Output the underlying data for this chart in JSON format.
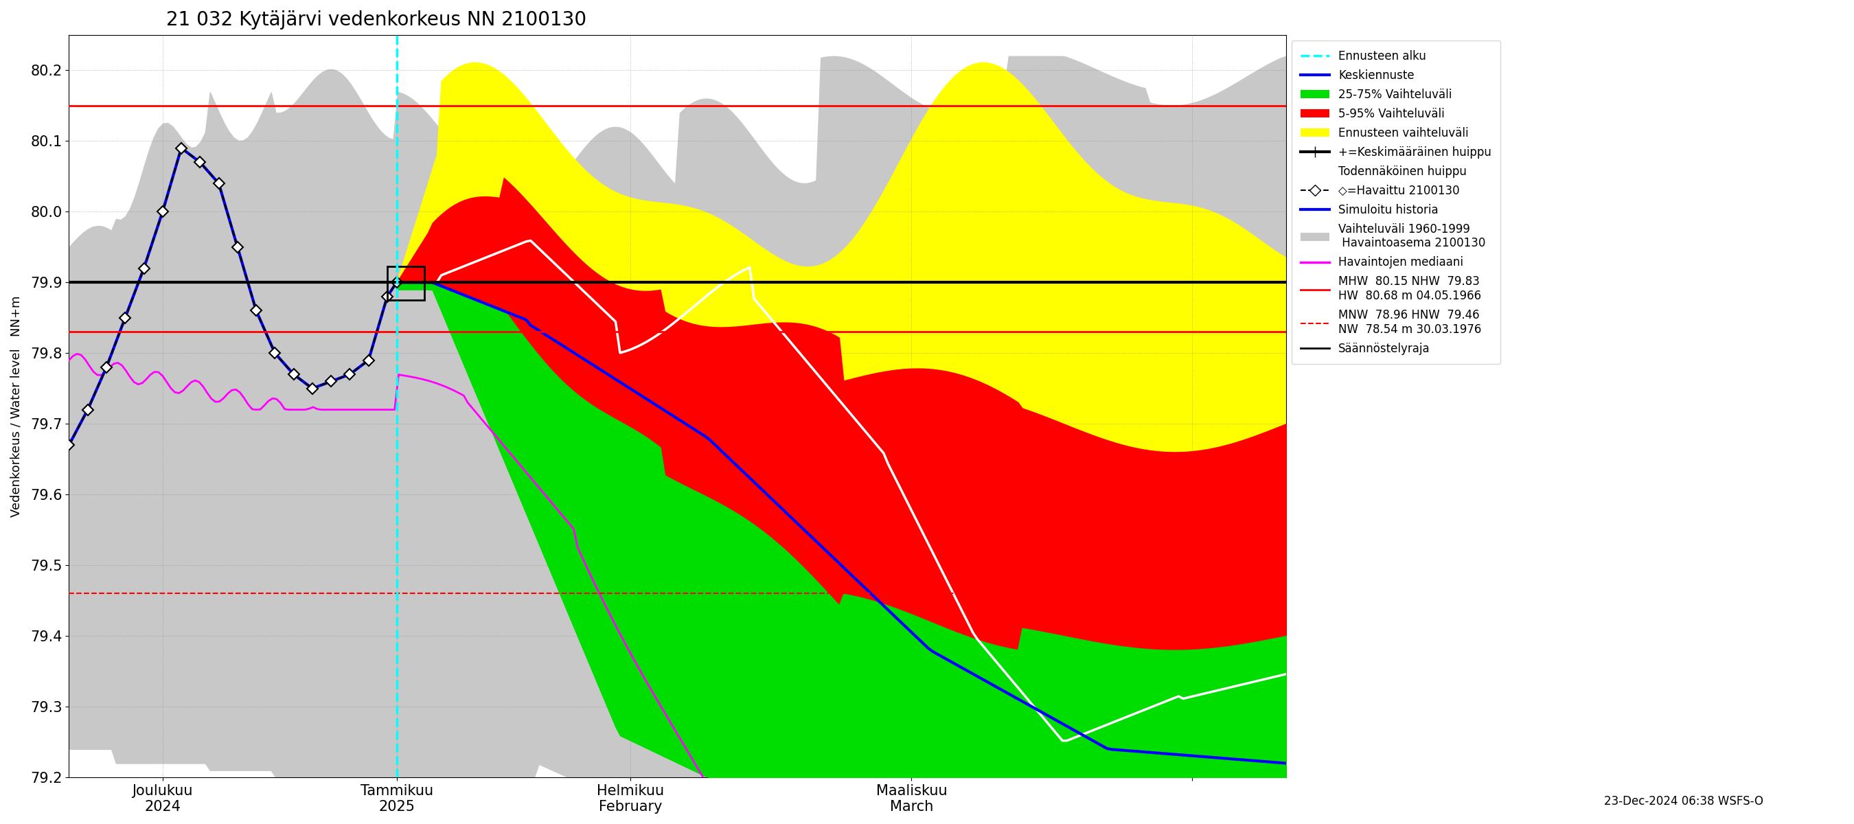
{
  "title": "21 032 Kytäjärvi vedenkorkeus NN 2100130",
  "ylabel": "Vedenkorkeus / Water level   NN+m",
  "ylim": [
    79.2,
    80.25
  ],
  "yticks": [
    79.2,
    79.3,
    79.4,
    79.5,
    79.6,
    79.7,
    79.8,
    79.9,
    80.0,
    80.1,
    80.2
  ],
  "ennusteen_alku_x": 35,
  "red_line_solid_1": 80.15,
  "red_line_solid_2": 79.83,
  "red_line_dashed": 79.46,
  "black_line_y": 79.9,
  "footer_text": "23-Dec-2024 06:38 WSFS-O",
  "x_tick_positions": [
    10,
    35,
    60,
    90,
    120
  ],
  "x_tick_labels": [
    "Joulukuu\n2024",
    "Tammikuu\n2025",
    "Helmikuu\nFebruary",
    "Maaliskuu\nMarch",
    ""
  ]
}
